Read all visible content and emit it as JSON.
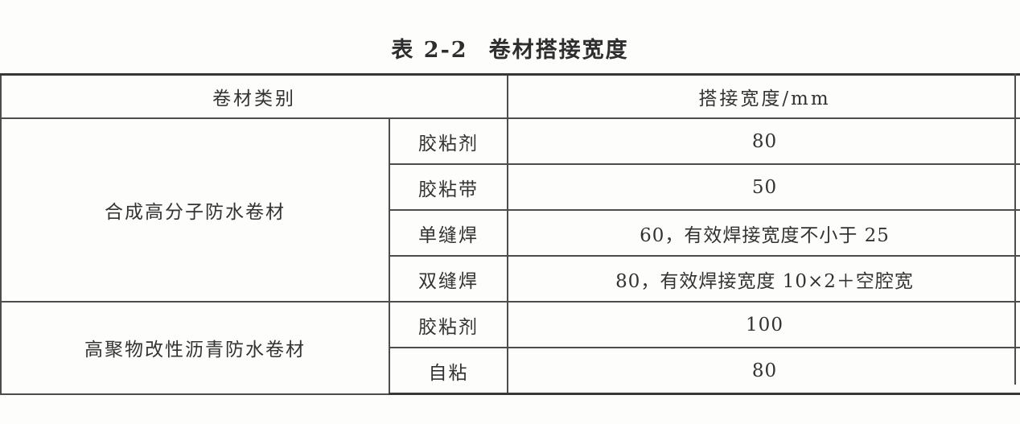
{
  "title": {
    "prefix": "表 2-2",
    "text": "卷材搭接宽度"
  },
  "table": {
    "headers": {
      "category": "卷材类别",
      "width": "搭接宽度/mm"
    },
    "groups": [
      {
        "category": "合成高分子防水卷材",
        "rows": [
          {
            "method": "胶粘剂",
            "width": "80"
          },
          {
            "method": "胶粘带",
            "width": "50"
          },
          {
            "method": "单缝焊",
            "width": "60，有效焊接宽度不小于 25"
          },
          {
            "method": "双缝焊",
            "width": "80，有效焊接宽度 10×2＋空腔宽"
          }
        ]
      },
      {
        "category": "高聚物改性沥青防水卷材",
        "rows": [
          {
            "method": "胶粘剂",
            "width": "100"
          },
          {
            "method": "自粘",
            "width": "80"
          }
        ]
      }
    ]
  }
}
